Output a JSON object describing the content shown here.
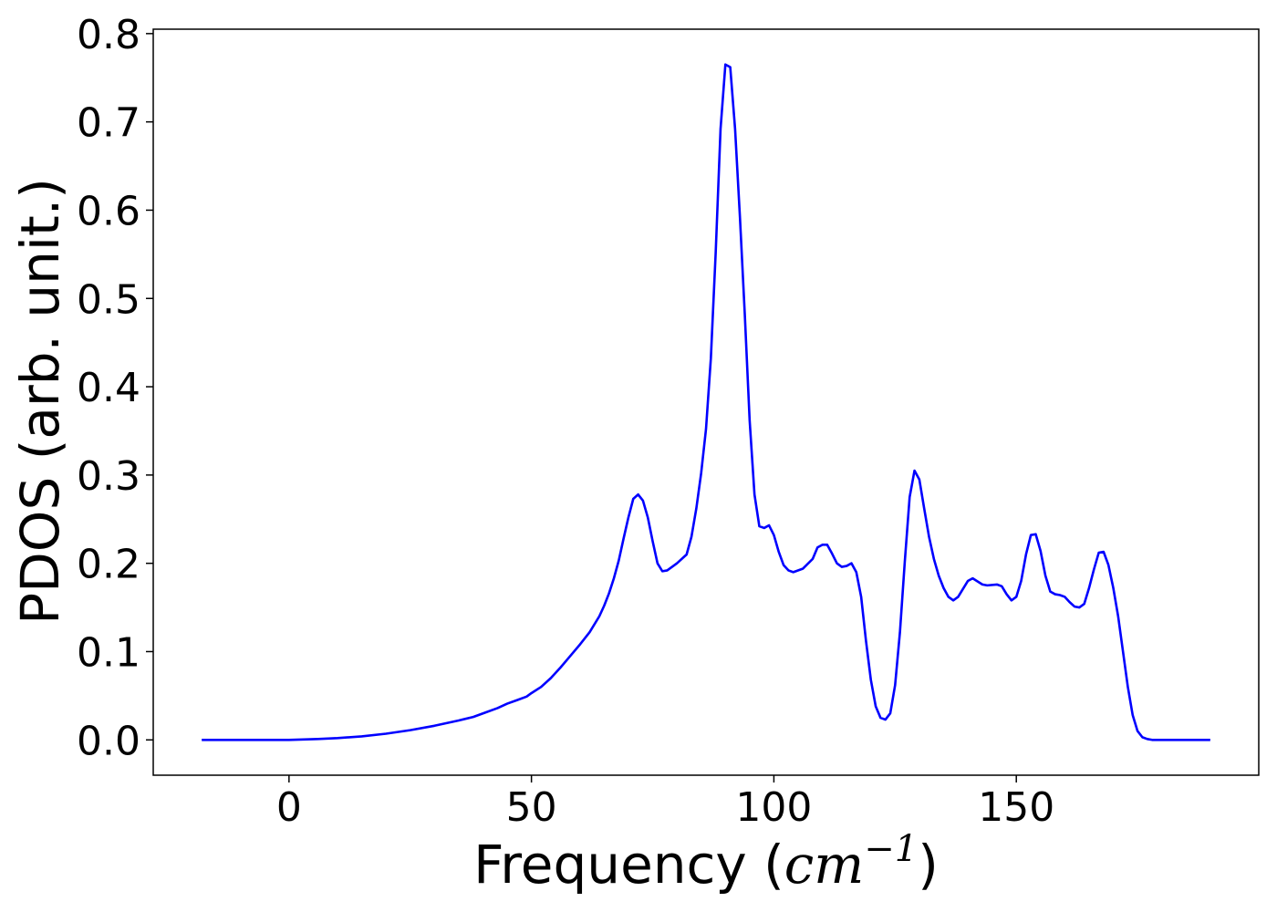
{
  "chart_data": {
    "type": "line",
    "title": "",
    "xlabel_prefix": "Frequency (",
    "xlabel_unit": "cm",
    "xlabel_exp": "−1",
    "xlabel_suffix": ")",
    "ylabel": "PDOS (arb. unit.)",
    "xlim": [
      -28,
      200
    ],
    "ylim": [
      -0.04,
      0.805
    ],
    "xticks": [
      0,
      50,
      100,
      150
    ],
    "xtick_labels": [
      "0",
      "50",
      "100",
      "150"
    ],
    "yticks": [
      0.0,
      0.1,
      0.2,
      0.3,
      0.4,
      0.5,
      0.6,
      0.7,
      0.8
    ],
    "ytick_labels": [
      "0.0",
      "0.1",
      "0.2",
      "0.3",
      "0.4",
      "0.5",
      "0.6",
      "0.7",
      "0.8"
    ],
    "grid": false,
    "legend": "none",
    "series": [
      {
        "color": "#0000ff",
        "points": [
          [
            -18,
            0.0
          ],
          [
            -10,
            0.0
          ],
          [
            0,
            0.0
          ],
          [
            3,
            0.0005
          ],
          [
            6,
            0.001
          ],
          [
            10,
            0.002
          ],
          [
            15,
            0.004
          ],
          [
            20,
            0.007
          ],
          [
            25,
            0.011
          ],
          [
            30,
            0.016
          ],
          [
            35,
            0.022
          ],
          [
            38,
            0.026
          ],
          [
            40,
            0.03
          ],
          [
            43,
            0.036
          ],
          [
            45,
            0.041
          ],
          [
            47,
            0.045
          ],
          [
            49,
            0.049
          ],
          [
            50,
            0.053
          ],
          [
            52,
            0.06
          ],
          [
            54,
            0.07
          ],
          [
            56,
            0.082
          ],
          [
            58,
            0.095
          ],
          [
            60,
            0.108
          ],
          [
            62,
            0.122
          ],
          [
            64,
            0.14
          ],
          [
            65,
            0.152
          ],
          [
            66,
            0.166
          ],
          [
            67,
            0.183
          ],
          [
            68,
            0.203
          ],
          [
            69,
            0.228
          ],
          [
            70,
            0.252
          ],
          [
            71,
            0.273
          ],
          [
            72,
            0.278
          ],
          [
            73,
            0.271
          ],
          [
            74,
            0.252
          ],
          [
            75,
            0.225
          ],
          [
            76,
            0.2
          ],
          [
            77,
            0.191
          ],
          [
            78,
            0.192
          ],
          [
            80,
            0.2
          ],
          [
            82,
            0.21
          ],
          [
            83,
            0.23
          ],
          [
            84,
            0.262
          ],
          [
            85,
            0.302
          ],
          [
            86,
            0.352
          ],
          [
            87,
            0.432
          ],
          [
            88,
            0.552
          ],
          [
            89,
            0.692
          ],
          [
            90,
            0.765
          ],
          [
            91,
            0.762
          ],
          [
            92,
            0.692
          ],
          [
            93,
            0.592
          ],
          [
            94,
            0.482
          ],
          [
            95,
            0.362
          ],
          [
            96,
            0.278
          ],
          [
            97,
            0.242
          ],
          [
            98,
            0.24
          ],
          [
            99,
            0.243
          ],
          [
            100,
            0.232
          ],
          [
            101,
            0.213
          ],
          [
            102,
            0.198
          ],
          [
            103,
            0.192
          ],
          [
            104,
            0.19
          ],
          [
            106,
            0.194
          ],
          [
            108,
            0.205
          ],
          [
            109,
            0.218
          ],
          [
            110,
            0.221
          ],
          [
            111,
            0.221
          ],
          [
            112,
            0.211
          ],
          [
            113,
            0.2
          ],
          [
            114,
            0.196
          ],
          [
            115,
            0.197
          ],
          [
            116,
            0.2
          ],
          [
            117,
            0.19
          ],
          [
            118,
            0.162
          ],
          [
            119,
            0.112
          ],
          [
            120,
            0.068
          ],
          [
            121,
            0.038
          ],
          [
            122,
            0.025
          ],
          [
            123,
            0.023
          ],
          [
            124,
            0.03
          ],
          [
            125,
            0.062
          ],
          [
            126,
            0.122
          ],
          [
            127,
            0.202
          ],
          [
            128,
            0.275
          ],
          [
            129,
            0.305
          ],
          [
            130,
            0.295
          ],
          [
            131,
            0.262
          ],
          [
            132,
            0.23
          ],
          [
            133,
            0.205
          ],
          [
            134,
            0.186
          ],
          [
            135,
            0.172
          ],
          [
            136,
            0.162
          ],
          [
            137,
            0.158
          ],
          [
            138,
            0.162
          ],
          [
            140,
            0.18
          ],
          [
            141,
            0.183
          ],
          [
            143,
            0.176
          ],
          [
            144,
            0.175
          ],
          [
            146,
            0.176
          ],
          [
            147,
            0.174
          ],
          [
            148,
            0.165
          ],
          [
            149,
            0.158
          ],
          [
            150,
            0.162
          ],
          [
            151,
            0.18
          ],
          [
            152,
            0.21
          ],
          [
            153,
            0.232
          ],
          [
            154,
            0.233
          ],
          [
            155,
            0.214
          ],
          [
            156,
            0.186
          ],
          [
            157,
            0.168
          ],
          [
            158,
            0.165
          ],
          [
            159,
            0.164
          ],
          [
            160,
            0.162
          ],
          [
            161,
            0.156
          ],
          [
            162,
            0.151
          ],
          [
            163,
            0.15
          ],
          [
            164,
            0.154
          ],
          [
            165,
            0.172
          ],
          [
            166,
            0.193
          ],
          [
            167,
            0.212
          ],
          [
            168,
            0.213
          ],
          [
            169,
            0.198
          ],
          [
            170,
            0.172
          ],
          [
            171,
            0.14
          ],
          [
            172,
            0.1
          ],
          [
            173,
            0.06
          ],
          [
            174,
            0.028
          ],
          [
            175,
            0.01
          ],
          [
            176,
            0.003
          ],
          [
            177,
            0.001
          ],
          [
            178,
            0.0
          ],
          [
            190,
            0.0
          ]
        ]
      }
    ]
  }
}
